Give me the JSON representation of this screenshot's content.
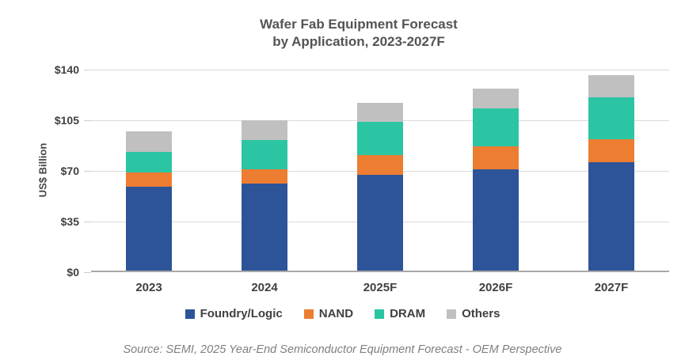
{
  "title": {
    "line1": "Wafer Fab Equipment Forecast",
    "line2": "by Application, 2023-2027F"
  },
  "source": "Source: SEMI, 2025 Year-End Semiconductor Equipment Forecast - OEM Perspective",
  "colors": {
    "foundry_logic": "#2D5499",
    "nand": "#ED7D31",
    "dram": "#2BC5A4",
    "others": "#C0C0C0",
    "gridline": "#D9D9D9",
    "axis_line": "#A8A8A8",
    "text_dark": "#404040",
    "source_text": "#7F7F7F"
  },
  "chart_data": {
    "type": "bar",
    "stacked": true,
    "title": "Wafer Fab Equipment Forecast by Application, 2023-2027F",
    "xlabel": "",
    "ylabel": "US$ Billion",
    "ylim": [
      0,
      140
    ],
    "grid": true,
    "legend_position": "bottom",
    "yticks": [
      {
        "label": "$140",
        "value": 140
      },
      {
        "label": "$105",
        "value": 105
      },
      {
        "label": "$70",
        "value": 70
      },
      {
        "label": "$35",
        "value": 35
      },
      {
        "label": "$0",
        "value": 0
      }
    ],
    "categories": [
      "2023",
      "2024",
      "2025F",
      "2026F",
      "2027F"
    ],
    "series": [
      {
        "name": "Foundry/Logic",
        "color": "#2D5499",
        "values": [
          58,
          60,
          66,
          70,
          75
        ]
      },
      {
        "name": "NAND",
        "color": "#ED7D31",
        "values": [
          10,
          10,
          14,
          16,
          16
        ]
      },
      {
        "name": "DRAM",
        "color": "#2BC5A4",
        "values": [
          14,
          20,
          23,
          26,
          29
        ]
      },
      {
        "name": "Others",
        "color": "#C0C0C0",
        "values": [
          14,
          14,
          13,
          14,
          15
        ]
      }
    ],
    "totals": [
      96,
      104,
      116,
      126,
      135
    ]
  }
}
